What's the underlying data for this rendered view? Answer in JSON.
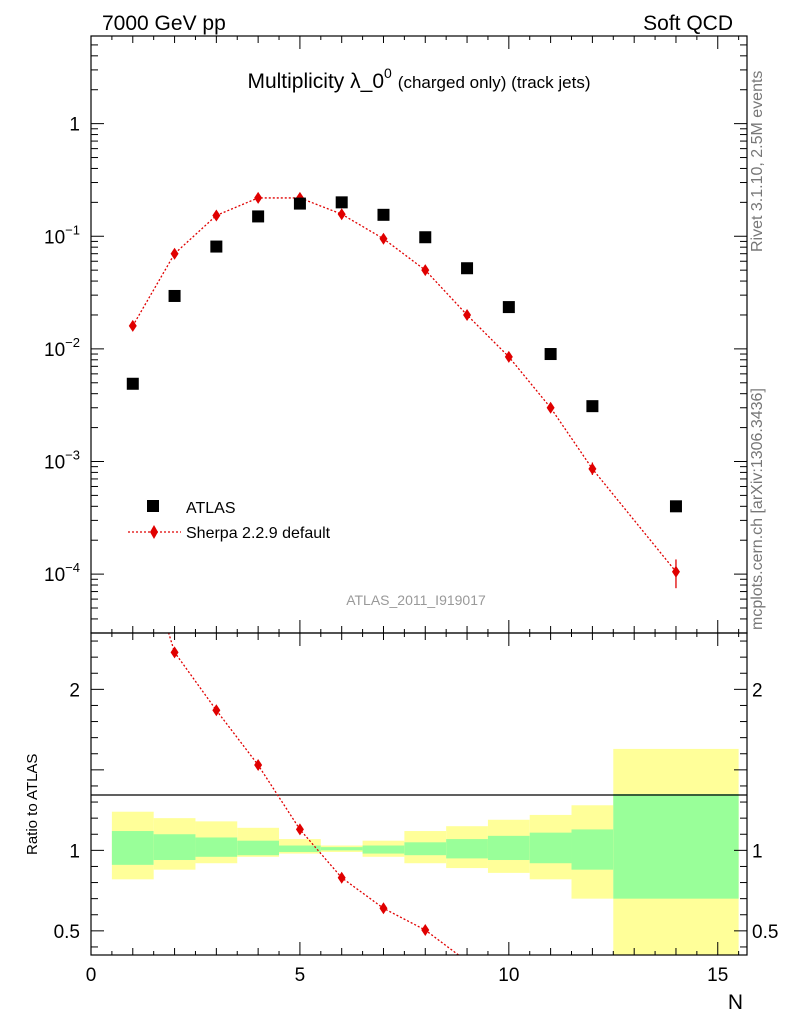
{
  "header": {
    "left": "7000 GeV pp",
    "right": "Soft QCD"
  },
  "side": {
    "top": "Rivet 3.1.10,  2.5M events",
    "bottom": "mcplots.cern.ch [arXiv:1306.3436]"
  },
  "chart_data": [
    {
      "type": "scatter",
      "title": "Multiplicity λ_0⁰ (charged only) (track jets)",
      "title_main": "Multiplicity λ_0",
      "title_sup": "0",
      "title_small": "(charged only) (track jets)",
      "watermark": "ATLAS_2011_I919017",
      "yscale": "log",
      "ylim": [
        3e-05,
        6
      ],
      "xlim": [
        0,
        15.7
      ],
      "y_ticks": [
        {
          "v": 1,
          "label": "1"
        },
        {
          "v": 0.1,
          "base": "10",
          "exp": "−1"
        },
        {
          "v": 0.01,
          "base": "10",
          "exp": "−2"
        },
        {
          "v": 0.001,
          "base": "10",
          "exp": "−3"
        },
        {
          "v": 0.0001,
          "base": "10",
          "exp": "−4"
        }
      ],
      "legend_position": "lower-left",
      "series": [
        {
          "name": "ATLAS",
          "marker": "square",
          "color": "#000000",
          "x": [
            1,
            2,
            3,
            4,
            5,
            6,
            7,
            8,
            9,
            10,
            11,
            12,
            14
          ],
          "y": [
            0.0049,
            0.0295,
            0.081,
            0.15,
            0.195,
            0.2,
            0.155,
            0.098,
            0.052,
            0.0235,
            0.009,
            0.0031,
            0.0004
          ]
        },
        {
          "name": "Sherpa 2.2.9 default",
          "marker": "diamond",
          "line": "dotted",
          "color": "#e00000",
          "x": [
            1,
            2,
            3,
            4,
            5,
            6,
            7,
            8,
            9,
            10,
            11,
            12,
            14
          ],
          "y": [
            0.016,
            0.07,
            0.153,
            0.219,
            0.219,
            0.157,
            0.095,
            0.05,
            0.02,
            0.0085,
            0.003,
            0.00086,
            0.000105
          ],
          "yerr_upper": [
            0,
            0,
            0,
            0,
            0,
            0,
            0,
            0,
            0,
            0,
            0,
            0.00012,
            3e-05
          ],
          "yerr_lower": [
            0,
            0,
            0,
            0,
            0,
            0,
            0,
            0,
            0,
            0,
            0,
            0.0001,
            3e-05
          ]
        }
      ]
    },
    {
      "type": "scatter",
      "ylabel": "Ratio to ATLAS",
      "xlabel": "N",
      "ylim": [
        0.35,
        2.35
      ],
      "xlim": [
        0,
        15.7
      ],
      "y_ticks": [
        {
          "v": 0.5,
          "label": "0.5"
        },
        {
          "v": 1,
          "label": "1"
        },
        {
          "v": 2,
          "label": "2"
        }
      ],
      "x_ticks": [
        {
          "v": 0,
          "label": "0"
        },
        {
          "v": 5,
          "label": "5"
        },
        {
          "v": 10,
          "label": "10"
        },
        {
          "v": 15,
          "label": "15"
        }
      ],
      "bands": {
        "bin_edges": [
          0.5,
          1.5,
          2.5,
          3.5,
          4.5,
          5.5,
          6.5,
          7.5,
          8.5,
          9.5,
          10.5,
          11.5,
          12.5,
          15.5
        ],
        "inner_color": "#99ff99",
        "outer_color": "#ffff99",
        "inner_hi": [
          1.12,
          1.1,
          1.08,
          1.06,
          1.03,
          1.02,
          1.03,
          1.05,
          1.07,
          1.09,
          1.11,
          1.13,
          1.35
        ],
        "inner_lo": [
          0.91,
          0.94,
          0.96,
          0.97,
          0.99,
          1.0,
          0.98,
          0.97,
          0.95,
          0.94,
          0.92,
          0.88,
          0.7
        ],
        "outer_hi": [
          1.24,
          1.2,
          1.18,
          1.14,
          1.07,
          1.03,
          1.06,
          1.12,
          1.15,
          1.19,
          1.22,
          1.28,
          1.63
        ],
        "outer_lo": [
          0.82,
          0.88,
          0.92,
          0.96,
          0.98,
          0.99,
          0.96,
          0.92,
          0.89,
          0.86,
          0.82,
          0.7,
          0.3
        ]
      },
      "series": [
        {
          "name": "Sherpa 2.2.9 default",
          "marker": "diamond",
          "line": "dotted",
          "color": "#e00000",
          "x": [
            2,
            3,
            4,
            5,
            6,
            7,
            8
          ],
          "y": [
            2.23,
            1.87,
            1.53,
            1.13,
            0.83,
            0.64,
            0.505
          ],
          "line_x": [
            1.8,
            2,
            3,
            4,
            5,
            6,
            7,
            8,
            9
          ],
          "line_y": [
            2.4,
            2.23,
            1.87,
            1.53,
            1.13,
            0.83,
            0.64,
            0.505,
            0.31
          ]
        }
      ]
    }
  ]
}
